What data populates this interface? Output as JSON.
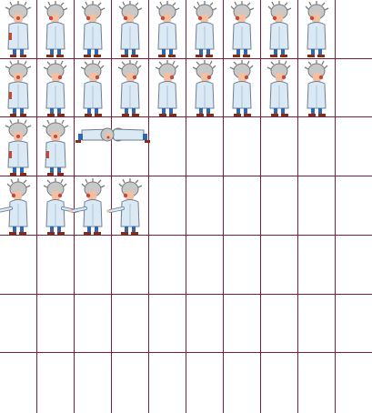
{
  "sprite_sheet": {
    "columns": 10,
    "rows": 7,
    "grid_line_color": "#7d1f3a",
    "background_color": "#ffffff",
    "character": "scientist",
    "rows_content": [
      {
        "row": 1,
        "animation": "walk-left",
        "frames": 9
      },
      {
        "row": 2,
        "animation": "walk-right",
        "frames": 9
      },
      {
        "row": 3,
        "animation": "idle-and-lying",
        "frames": 4
      },
      {
        "row": 4,
        "animation": "point",
        "frames": 4
      }
    ],
    "palette": {
      "coat": "#dbe9f5",
      "coat_outline": "#6d7f93",
      "coat_shade": "#a9c3da",
      "hair": "#c8c8c8",
      "hair_dark": "#7a7a7a",
      "skin": "#f2c0a0",
      "nose": "#c9463b",
      "pants": "#2c67b0",
      "shoes": "#8a2a12"
    }
  }
}
